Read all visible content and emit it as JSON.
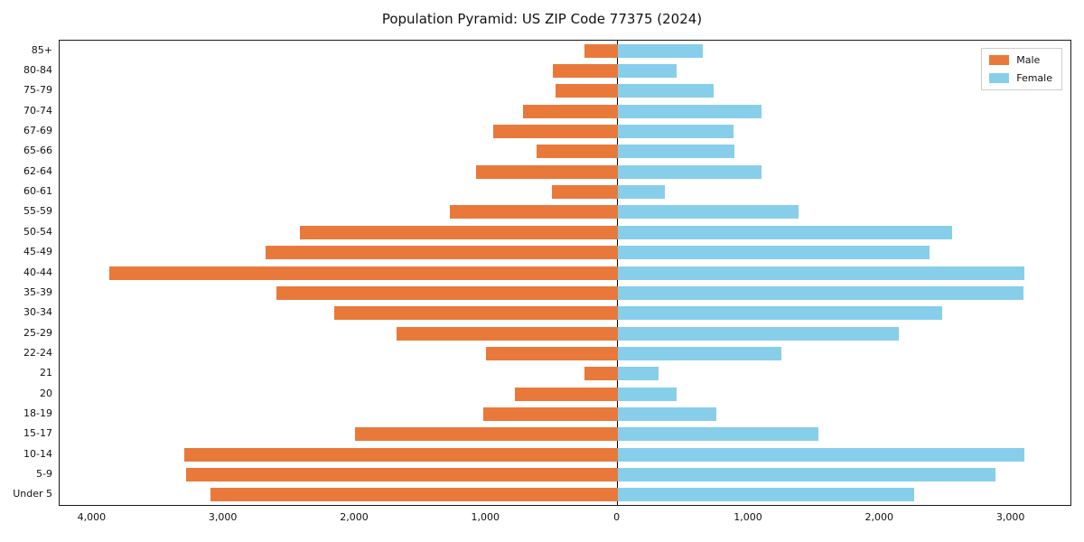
{
  "title": "Population Pyramid: US ZIP Code 77375 (2024)",
  "colors": {
    "male": "#e8793b",
    "female": "#87ceeb",
    "axis": "#000000"
  },
  "legend": {
    "male_label": "Male",
    "female_label": "Female"
  },
  "chart_data": {
    "type": "bar",
    "orientation": "horizontal-pyramid",
    "title": "Population Pyramid: US ZIP Code 77375 (2024)",
    "xlabel": "",
    "ylabel": "",
    "legend_position": "upper right",
    "grid": false,
    "xlim": [
      -4250,
      3450
    ],
    "categories": [
      "85+",
      "80-84",
      "75-79",
      "70-74",
      "67-69",
      "65-66",
      "62-64",
      "60-61",
      "55-59",
      "50-54",
      "45-49",
      "40-44",
      "35-39",
      "30-34",
      "25-29",
      "22-24",
      "21",
      "20",
      "18-19",
      "15-17",
      "10-14",
      "5-9",
      "Under 5"
    ],
    "series": [
      {
        "name": "Male",
        "direction": "left",
        "values": [
          250,
          490,
          470,
          720,
          950,
          620,
          1080,
          500,
          1280,
          2420,
          2680,
          3870,
          2600,
          2160,
          1680,
          1000,
          250,
          780,
          1020,
          2000,
          3300,
          3290,
          3100
        ]
      },
      {
        "name": "Female",
        "direction": "right",
        "values": [
          650,
          450,
          730,
          1100,
          880,
          890,
          1100,
          360,
          1380,
          2550,
          2380,
          3100,
          3090,
          2470,
          2140,
          1250,
          310,
          450,
          750,
          1530,
          3100,
          2880,
          2260
        ]
      }
    ],
    "xticks": [
      -4000,
      -3000,
      -2000,
      -1000,
      0,
      1000,
      2000,
      3000
    ],
    "xtick_labels": [
      "4,000",
      "3,000",
      "2,000",
      "1,000",
      "0",
      "1,000",
      "2,000",
      "3,000"
    ]
  }
}
